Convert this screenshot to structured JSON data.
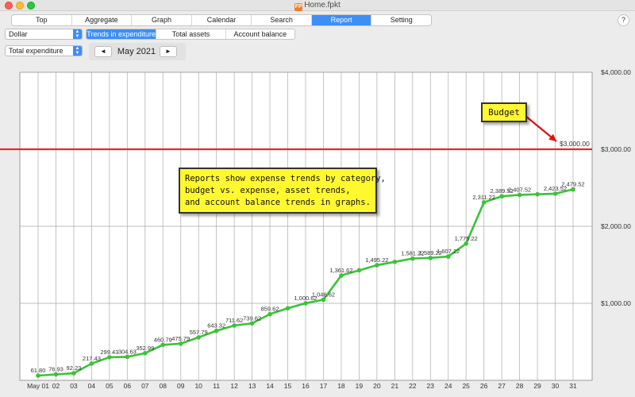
{
  "window": {
    "title": "Home.fpkt",
    "app_icon": "FP"
  },
  "tabs": [
    {
      "label": "Top",
      "active": false
    },
    {
      "label": "Aggregate",
      "active": false
    },
    {
      "label": "Graph",
      "active": false
    },
    {
      "label": "Calendar",
      "active": false
    },
    {
      "label": "Search",
      "active": false
    },
    {
      "label": "Report",
      "active": true
    },
    {
      "label": "Setting",
      "active": false
    }
  ],
  "help_label": "?",
  "currency_select": {
    "value": "Dollar"
  },
  "report_type_select": {
    "value": "Total expenditure"
  },
  "subtabs": [
    {
      "label": "Trends in expenditure",
      "active": true
    },
    {
      "label": "Total assets",
      "active": false
    },
    {
      "label": "Account balance",
      "active": false
    }
  ],
  "month_nav": {
    "prev": "◄",
    "label": "May 2021",
    "next": "►"
  },
  "callouts": {
    "budget": "Budget",
    "info": [
      "Reports show expense trends by category,",
      "budget vs. expense, asset trends,",
      "and account balance trends in graphs."
    ]
  },
  "chart_data": {
    "type": "line",
    "title": "",
    "xlabel": "",
    "ylabel": "",
    "categories": [
      "May 01",
      "02",
      "03",
      "04",
      "05",
      "06",
      "07",
      "08",
      "09",
      "10",
      "11",
      "12",
      "13",
      "14",
      "15",
      "16",
      "17",
      "18",
      "19",
      "20",
      "21",
      "22",
      "23",
      "24",
      "25",
      "26",
      "27",
      "28",
      "29",
      "30",
      "31"
    ],
    "x_tick_labels": [
      "May 01",
      "02",
      "03",
      "04",
      "05",
      "06",
      "07",
      "08",
      "09",
      "10",
      "11",
      "12",
      "13",
      "14",
      "15",
      "16",
      "17",
      "18",
      "19",
      "20",
      "21",
      "22",
      "23",
      "24",
      "25",
      "26",
      "27",
      "28",
      "29",
      "30",
      "31"
    ],
    "y_ticks": [
      1000,
      2000,
      3000,
      4000
    ],
    "y_tick_labels": [
      "$1,000.00",
      "$2,000.00",
      "$3,000.00",
      "$4,000.00"
    ],
    "ylim": [
      0,
      4000
    ],
    "grid": true,
    "series": [
      {
        "values": [
          61.8,
          76.93,
          92.23,
          217.43,
          299.43,
          304.63,
          352.99,
          460.79,
          475.79,
          557.79,
          643.32,
          711.62,
          739.62,
          859.62,
          935.62,
          1000.62,
          1046.62,
          1361.62,
          1428.42,
          1495.22,
          1538.22,
          1581.22,
          1589.22,
          1607.22,
          1775.22,
          2311.22,
          2389.52,
          2407.52,
          2415.52,
          2423.52,
          2479.52
        ],
        "labels": [
          "61.80",
          "76.93",
          "92.23",
          "217.43",
          "299.43",
          "304.63",
          "352.99",
          "460.79",
          "475.79",
          "557.79",
          "643.32",
          "711.62",
          "739.62",
          "859.62",
          "",
          "1,000.62",
          "1,046.62",
          "1,361.62",
          "",
          "1,495.22",
          "",
          "1,581.22",
          "1,589.22",
          "1,607.22",
          "1,775.22",
          "2,311.22",
          "2,389.52",
          "2,407.52",
          "",
          "2,423.52",
          "2,479.52"
        ],
        "color": "#3cc23a"
      }
    ],
    "budget_line": {
      "value": 3000,
      "label": "$3,000.00",
      "color": "#e62828"
    },
    "arrow_color": "#dd1111"
  }
}
